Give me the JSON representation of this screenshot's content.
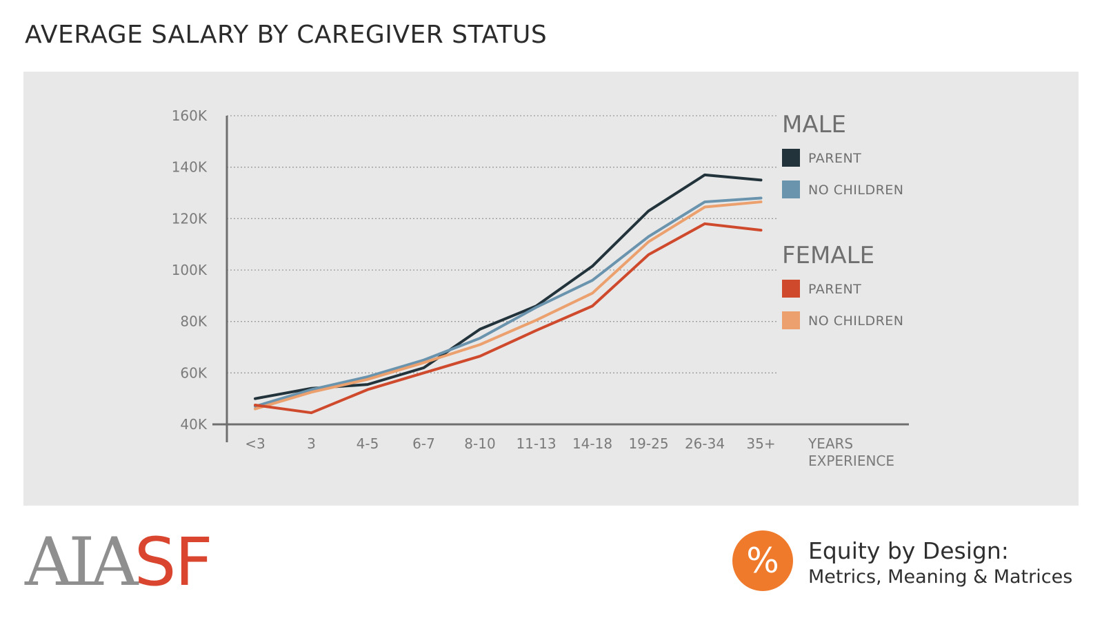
{
  "title": "AVERAGE SALARY BY CAREGIVER STATUS",
  "colors": {
    "male_parent": "#22333b",
    "male_no_children": "#6a93ad",
    "female_parent": "#cf4a2d",
    "female_no_children": "#eba06e",
    "brand_red": "#d9452f",
    "brand_gray": "#8f8f8f",
    "badge_orange": "#ef7a2b"
  },
  "chart_data": {
    "type": "line",
    "title": "AVERAGE SALARY BY CAREGIVER STATUS",
    "categories": [
      "<3",
      "3",
      "4-5",
      "6-7",
      "8-10",
      "11-13",
      "14-18",
      "19-25",
      "26-34",
      "35+"
    ],
    "xlabel": "YEARS EXPERIENCE",
    "xlabel_lines": [
      "YEARS",
      "EXPERIENCE"
    ],
    "ylabel": "",
    "ylim": [
      40000,
      160000
    ],
    "yticks": [
      40000,
      60000,
      80000,
      100000,
      120000,
      140000,
      160000
    ],
    "ytick_labels": [
      "40K",
      "60K",
      "80K",
      "100K",
      "120K",
      "140K",
      "160K"
    ],
    "grid": true,
    "legend_position": "right",
    "legend_groups": [
      {
        "heading": "MALE",
        "entries": [
          "PARENT",
          "NO CHILDREN"
        ]
      },
      {
        "heading": "FEMALE",
        "entries": [
          "PARENT",
          "NO CHILDREN"
        ]
      }
    ],
    "series": [
      {
        "name": "MALE PARENT",
        "color": "#22333b",
        "values": [
          50000,
          54000,
          55500,
          62000,
          77000,
          86000,
          101500,
          123000,
          137000,
          135000
        ]
      },
      {
        "name": "MALE NO CHILDREN",
        "color": "#6a93ad",
        "values": [
          47000,
          53500,
          58500,
          65000,
          73500,
          85500,
          96000,
          113000,
          126500,
          128000
        ]
      },
      {
        "name": "FEMALE NO CHILDREN",
        "color": "#eba06e",
        "values": [
          46000,
          52500,
          57500,
          64000,
          71000,
          80500,
          91000,
          111000,
          124500,
          126500
        ]
      },
      {
        "name": "FEMALE PARENT",
        "color": "#cf4a2d",
        "values": [
          47500,
          44500,
          53500,
          60000,
          66500,
          76500,
          86000,
          106000,
          118000,
          115500
        ]
      }
    ]
  },
  "footer": {
    "logo_left": "AIA",
    "logo_right": "SF",
    "badge_symbol": "%",
    "brand_title": "Equity by Design:",
    "brand_subtitle": "Metrics, Meaning & Matrices"
  }
}
